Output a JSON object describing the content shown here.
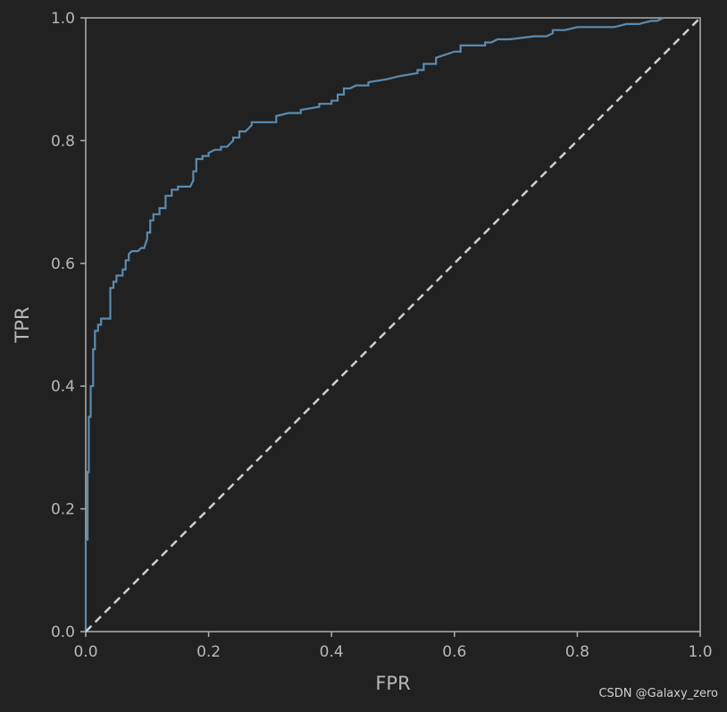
{
  "chart_data": {
    "type": "line",
    "title": "",
    "xlabel": "FPR",
    "ylabel": "TPR",
    "xlim": [
      0,
      1
    ],
    "ylim": [
      0,
      1
    ],
    "grid": false,
    "legend": "none",
    "x_ticks": [
      "0.0",
      "0.2",
      "0.4",
      "0.6",
      "0.8",
      "1.0"
    ],
    "y_ticks": [
      "0.0",
      "0.2",
      "0.4",
      "0.6",
      "0.8",
      "1.0"
    ],
    "series": [
      {
        "color": "#5a8bb0",
        "style": "solid",
        "x": [
          0.0,
          0.0,
          0.003,
          0.003,
          0.005,
          0.005,
          0.008,
          0.008,
          0.012,
          0.012,
          0.015,
          0.015,
          0.02,
          0.02,
          0.025,
          0.025,
          0.03,
          0.03,
          0.04,
          0.04,
          0.045,
          0.045,
          0.05,
          0.05,
          0.055,
          0.06,
          0.06,
          0.065,
          0.065,
          0.07,
          0.07,
          0.075,
          0.085,
          0.09,
          0.095,
          0.1,
          0.1,
          0.105,
          0.105,
          0.11,
          0.11,
          0.12,
          0.12,
          0.13,
          0.13,
          0.14,
          0.14,
          0.15,
          0.15,
          0.17,
          0.175,
          0.175,
          0.18,
          0.18,
          0.19,
          0.19,
          0.2,
          0.2,
          0.21,
          0.22,
          0.22,
          0.23,
          0.24,
          0.24,
          0.25,
          0.25,
          0.26,
          0.27,
          0.27,
          0.28,
          0.31,
          0.31,
          0.33,
          0.35,
          0.35,
          0.38,
          0.38,
          0.4,
          0.4,
          0.41,
          0.41,
          0.415,
          0.42,
          0.42,
          0.43,
          0.44,
          0.46,
          0.46,
          0.49,
          0.51,
          0.54,
          0.54,
          0.55,
          0.55,
          0.57,
          0.57,
          0.6,
          0.61,
          0.61,
          0.63,
          0.65,
          0.65,
          0.66,
          0.67,
          0.69,
          0.73,
          0.75,
          0.76,
          0.76,
          0.78,
          0.8,
          0.82,
          0.84,
          0.86,
          0.88,
          0.88,
          0.9,
          0.92,
          0.93,
          0.94
        ],
        "y": [
          0.0,
          0.15,
          0.15,
          0.26,
          0.26,
          0.35,
          0.35,
          0.4,
          0.4,
          0.46,
          0.46,
          0.49,
          0.49,
          0.5,
          0.5,
          0.51,
          0.51,
          0.51,
          0.51,
          0.56,
          0.56,
          0.57,
          0.57,
          0.58,
          0.58,
          0.58,
          0.59,
          0.59,
          0.605,
          0.605,
          0.615,
          0.62,
          0.62,
          0.625,
          0.625,
          0.64,
          0.65,
          0.65,
          0.67,
          0.67,
          0.68,
          0.68,
          0.69,
          0.69,
          0.71,
          0.71,
          0.72,
          0.72,
          0.725,
          0.725,
          0.735,
          0.75,
          0.75,
          0.77,
          0.77,
          0.775,
          0.775,
          0.78,
          0.785,
          0.785,
          0.79,
          0.79,
          0.8,
          0.805,
          0.805,
          0.815,
          0.815,
          0.825,
          0.83,
          0.83,
          0.83,
          0.84,
          0.845,
          0.845,
          0.85,
          0.855,
          0.86,
          0.86,
          0.865,
          0.865,
          0.875,
          0.875,
          0.875,
          0.885,
          0.885,
          0.89,
          0.89,
          0.895,
          0.9,
          0.905,
          0.91,
          0.915,
          0.915,
          0.925,
          0.925,
          0.935,
          0.945,
          0.945,
          0.955,
          0.955,
          0.955,
          0.96,
          0.96,
          0.965,
          0.965,
          0.97,
          0.97,
          0.975,
          0.98,
          0.98,
          0.985,
          0.985,
          0.985,
          0.985,
          0.99,
          0.99,
          0.99,
          0.995,
          0.995,
          1.0
        ]
      },
      {
        "color": "#cfcfcf",
        "style": "dashed",
        "x": [
          0,
          1
        ],
        "y": [
          0,
          1
        ]
      }
    ]
  },
  "watermark": "CSDN @Galaxy_zero"
}
